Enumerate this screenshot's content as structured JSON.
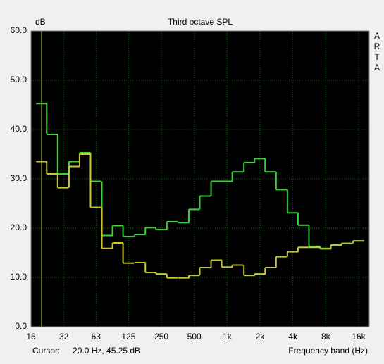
{
  "chart_data": {
    "type": "step",
    "title": "Third octave SPL",
    "y_label": "dB",
    "x_label": "Frequency band (Hz)",
    "brand": "ARTA",
    "cursor_label": "Cursor:",
    "cursor_text": "20.0 Hz, 45.25 dB",
    "cursor_x": 20,
    "cursor_color": "#c8c832",
    "log_x": true,
    "grid": true,
    "background": "#000000",
    "grid_color": "#0b6b0b",
    "xlim": [
      16,
      20000
    ],
    "ylim": [
      0,
      60
    ],
    "xticks": [
      16,
      32,
      63,
      125,
      250,
      500,
      {
        "value": 1000,
        "label": "1k"
      },
      {
        "value": 2000,
        "label": "2k"
      },
      {
        "value": 4000,
        "label": "4k"
      },
      {
        "value": 8000,
        "label": "8k"
      },
      {
        "value": 16000,
        "label": "16k"
      }
    ],
    "yticks": [
      {
        "value": 0,
        "label": "0.0"
      },
      {
        "value": 10,
        "label": "10.0"
      },
      {
        "value": 20,
        "label": "20.0"
      },
      {
        "value": 30,
        "label": "30.0"
      },
      {
        "value": 40,
        "label": "40.0"
      },
      {
        "value": 50,
        "label": "50.0"
      },
      {
        "value": 60,
        "label": "60.0"
      }
    ],
    "x": [
      20,
      25,
      31.5,
      40,
      50,
      63,
      80,
      100,
      125,
      160,
      200,
      250,
      315,
      400,
      500,
      630,
      800,
      1000,
      1250,
      1600,
      2000,
      2500,
      3150,
      4000,
      5000,
      6300,
      8000,
      10000,
      12500,
      16000
    ],
    "series": [
      {
        "color": "#3ad43a",
        "values": [
          45.25,
          39,
          31,
          33.5,
          35.3,
          29.5,
          18.5,
          20.5,
          18.3,
          18.7,
          20.1,
          19.7,
          21.3,
          21.1,
          23.8,
          26.5,
          29.5,
          29.5,
          31.4,
          33.3,
          34.1,
          31.4,
          27.8,
          23.1,
          20.6,
          16.3,
          15.9,
          16.5,
          16.9,
          17.4
        ]
      },
      {
        "color": "#c8c832",
        "values": [
          33.5,
          31,
          28.2,
          32.5,
          35,
          24.2,
          15.9,
          17,
          12.9,
          13,
          11,
          10.7,
          9.9,
          9.9,
          10.4,
          12,
          13.5,
          12.1,
          12.5,
          10.4,
          10.7,
          12,
          14.2,
          15.2,
          16.1,
          16.1,
          15.8,
          16.6,
          16.9,
          17.4
        ]
      }
    ]
  }
}
